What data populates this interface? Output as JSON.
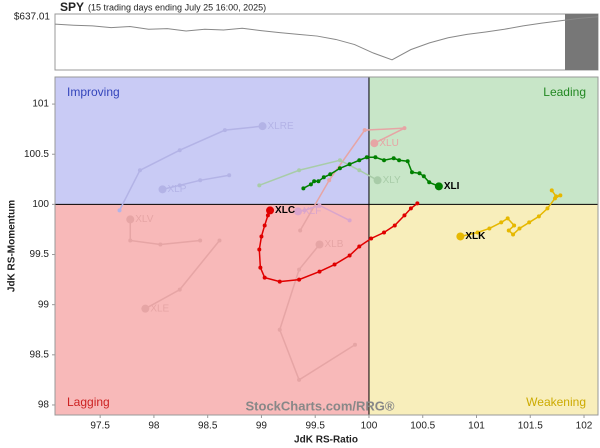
{
  "chart_data": {
    "type": "rrg",
    "title": "SPY",
    "subtitle": "(15 trading days ending July 25 16:00, 2025)",
    "price_strip": {
      "label": "$637.01",
      "ylim": [
        480,
        645
      ],
      "color": "#888888",
      "values": [
        615,
        612,
        610,
        605,
        608,
        600,
        602,
        595,
        600,
        598,
        603,
        596,
        590,
        585,
        580,
        570,
        555,
        530,
        510,
        540,
        560,
        575,
        585,
        592,
        600,
        610,
        618,
        625,
        632,
        637
      ]
    },
    "x_label": "JdK RS-Ratio",
    "y_label": "JdK RS-Momentum",
    "watermark": "StockCharts.com/RRG®",
    "quadrant_labels": {
      "top_left": "Improving",
      "top_right": "Leading",
      "bottom_left": "Lagging",
      "bottom_right": "Weakening"
    },
    "quadrant_colors": {
      "top_left": "#c9cbf5",
      "top_right": "#c8e6c8",
      "bottom_left": "#f8b9b9",
      "bottom_right": "#f8eebb"
    },
    "center": [
      100,
      100
    ],
    "xlim": [
      97.08,
      102.13
    ],
    "ylim": [
      97.9,
      101.27
    ],
    "xticks": [
      97.5,
      98,
      98.5,
      99,
      99.5,
      100,
      100.5,
      101,
      101.5,
      102
    ],
    "yticks": [
      98,
      98.5,
      99,
      99.5,
      100,
      100.5,
      101
    ],
    "series": [
      {
        "name": "XLRE",
        "color": "#b3b3e6",
        "x": [
          97.68,
          97.87,
          98.24,
          98.66,
          99.01
        ],
        "values": [
          99.94,
          100.34,
          100.54,
          100.74,
          100.78
        ]
      },
      {
        "name": "XLU",
        "color": "#e6a5a5",
        "x": [
          99.36,
          99.63,
          99.96,
          100.33,
          100.05
        ],
        "values": [
          99.74,
          100.24,
          100.74,
          100.76,
          100.61
        ]
      },
      {
        "name": "XLP",
        "color": "#b3b3e6",
        "x": [
          98.7,
          98.43,
          98.24,
          98.08
        ],
        "values": [
          100.29,
          100.24,
          100.19,
          100.15
        ]
      },
      {
        "name": "XLY",
        "color": "#a8cca8",
        "x": [
          98.98,
          99.35,
          99.73,
          99.91,
          100.08
        ],
        "values": [
          100.19,
          100.34,
          100.44,
          100.34,
          100.24
        ]
      },
      {
        "name": "XLV",
        "color": "#e6a5a5",
        "x": [
          98.43,
          98.06,
          97.78,
          97.78
        ],
        "values": [
          99.64,
          99.6,
          99.64,
          99.85
        ]
      },
      {
        "name": "XLF",
        "color": "#d9a5cc",
        "x": [
          99.82,
          99.54,
          99.4,
          99.34
        ],
        "values": [
          99.84,
          99.99,
          99.94,
          99.93
        ]
      },
      {
        "name": "XLB",
        "color": "#e6a5a5",
        "x": [
          99.87,
          99.35,
          99.17,
          99.35,
          99.54
        ],
        "values": [
          98.6,
          98.25,
          98.75,
          99.35,
          99.6
        ]
      },
      {
        "name": "XLE",
        "color": "#e6a5a5",
        "x": [
          98.61,
          98.24,
          97.92
        ],
        "values": [
          99.64,
          99.15,
          98.96
        ]
      },
      {
        "name": "XLI",
        "color": "#008000",
        "x": [
          99.39,
          99.46,
          99.49,
          99.53,
          99.58,
          99.64,
          99.73,
          99.82,
          99.91,
          99.98,
          100.06,
          100.14,
          100.23,
          100.28,
          100.36,
          100.4,
          100.47,
          100.51,
          100.56,
          100.65
        ],
        "values": [
          100.16,
          100.2,
          100.23,
          100.23,
          100.27,
          100.3,
          100.36,
          100.4,
          100.44,
          100.47,
          100.47,
          100.44,
          100.46,
          100.44,
          100.43,
          100.32,
          100.31,
          100.28,
          100.22,
          100.18
        ]
      },
      {
        "name": "XLC",
        "color": "#e00000",
        "x": [
          100.45,
          100.39,
          100.33,
          100.24,
          100.14,
          100.02,
          99.91,
          99.82,
          99.68,
          99.54,
          99.35,
          99.17,
          99.03,
          98.99,
          98.98,
          99.0,
          99.03,
          99.06,
          99.08
        ],
        "values": [
          100.01,
          99.96,
          99.89,
          99.79,
          99.72,
          99.66,
          99.58,
          99.49,
          99.4,
          99.33,
          99.25,
          99.23,
          99.27,
          99.37,
          99.55,
          99.68,
          99.79,
          99.89,
          99.94
        ]
      },
      {
        "name": "XLK",
        "color": "#e6b800",
        "x": [
          101.7,
          101.74,
          101.78,
          101.73,
          101.66,
          101.58,
          101.49,
          101.4,
          101.34,
          101.3,
          101.35,
          101.29,
          101.23,
          101.12,
          101.01,
          100.85
        ],
        "values": [
          100.14,
          100.08,
          100.09,
          100.06,
          99.96,
          99.88,
          99.82,
          99.76,
          99.7,
          99.74,
          99.79,
          99.86,
          99.82,
          99.76,
          99.72,
          99.68
        ]
      }
    ]
  }
}
